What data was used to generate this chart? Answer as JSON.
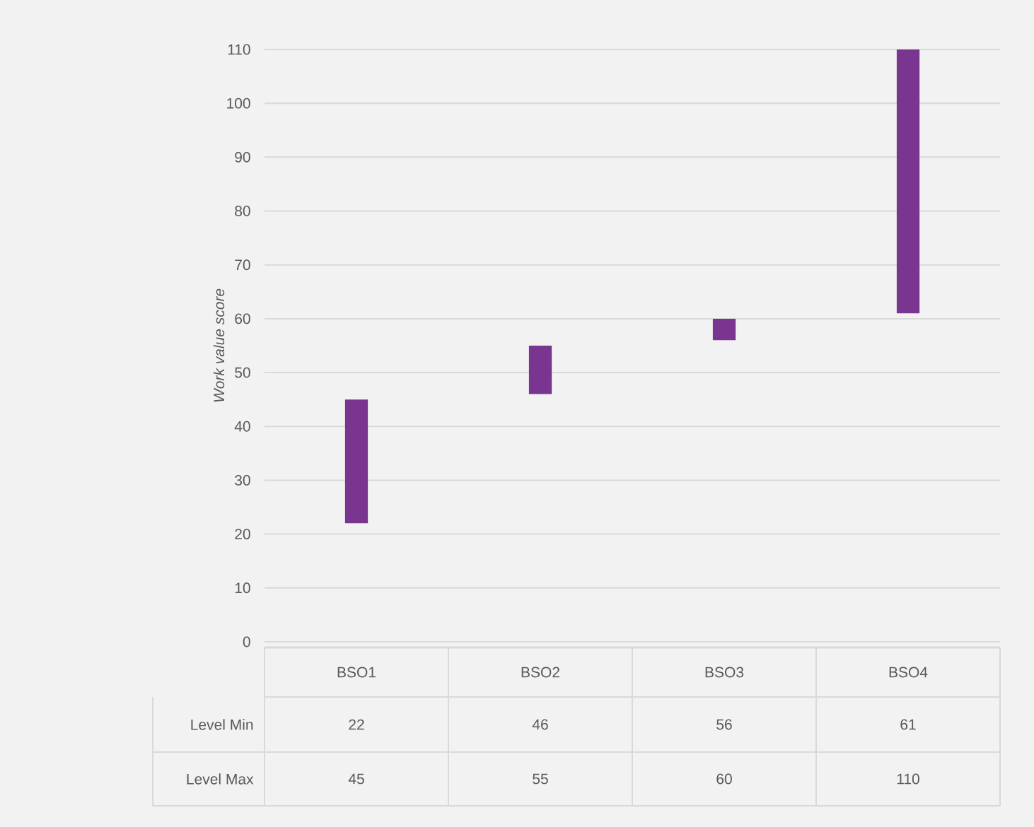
{
  "chart_data": {
    "type": "bar",
    "ylabel": "Work value score",
    "categories": [
      "BSO1",
      "BSO2",
      "BSO3",
      "BSO4"
    ],
    "base": [
      22,
      46,
      56,
      61
    ],
    "values": [
      23,
      9,
      4,
      49
    ],
    "color": "#7a3590",
    "ylim": [
      0,
      110
    ],
    "yticks": [
      0,
      10,
      20,
      30,
      40,
      50,
      60,
      70,
      80,
      90,
      100,
      110
    ],
    "grid": "y",
    "annotations": [
      "Level Min",
      "22",
      "46",
      "56",
      "61",
      "Level Max",
      "45",
      "55",
      "60",
      "110"
    ]
  }
}
